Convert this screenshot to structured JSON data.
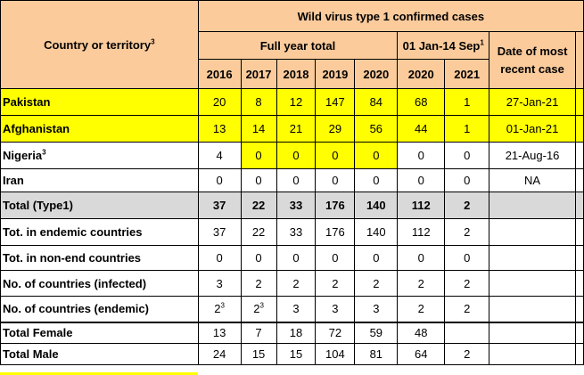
{
  "header": {
    "country_label": "Country or territory",
    "country_sup": "3",
    "wild_virus_title": "Wild virus type 1 confirmed cases",
    "full_year_label": "Full year total",
    "period_label": "01 Jan-14 Sep",
    "period_sup": "1",
    "date_recent_label": "Date of most recent case",
    "years": [
      "2016",
      "2017",
      "2018",
      "2019",
      "2020"
    ],
    "period_years": [
      "2020",
      "2021"
    ]
  },
  "rows": [
    {
      "label": "Pakistan",
      "sup": "",
      "values": [
        "20",
        "8",
        "12",
        "147",
        "84",
        "68",
        "1"
      ],
      "date": "27-Jan-21"
    },
    {
      "label": "Afghanistan",
      "sup": "",
      "values": [
        "13",
        "14",
        "21",
        "29",
        "56",
        "44",
        "1"
      ],
      "date": "01-Jan-21"
    },
    {
      "label": "Nigeria",
      "sup": "3",
      "values": [
        "4",
        "0",
        "0",
        "0",
        "0",
        "0",
        "0"
      ],
      "date": "21-Aug-16"
    },
    {
      "label": "Iran",
      "sup": "",
      "values": [
        "0",
        "0",
        "0",
        "0",
        "0",
        "0",
        "0"
      ],
      "date": "NA"
    },
    {
      "label": "Total (Type1)",
      "sup": "",
      "values": [
        "37",
        "22",
        "33",
        "176",
        "140",
        "112",
        "2"
      ],
      "date": ""
    },
    {
      "label": "Tot. in endemic countries",
      "sup": "",
      "values": [
        "37",
        "22",
        "33",
        "176",
        "140",
        "112",
        "2"
      ],
      "date": ""
    },
    {
      "label": "Tot. in non-end countries",
      "sup": "",
      "values": [
        "0",
        "0",
        "0",
        "0",
        "0",
        "0",
        "0"
      ],
      "date": ""
    },
    {
      "label": "No. of countries (infected)",
      "sup": "",
      "values": [
        "3",
        "2",
        "2",
        "2",
        "2",
        "2",
        "2"
      ],
      "date": ""
    },
    {
      "label": "No. of countries (endemic)",
      "sup": "",
      "values": [
        "2",
        "2",
        "3",
        "3",
        "3",
        "2",
        "2"
      ],
      "value_sups": [
        "3",
        "3",
        "",
        "",
        "",
        "",
        ""
      ],
      "date": ""
    },
    {
      "label": "Total Female",
      "sup": "",
      "values": [
        "13",
        "7",
        "18",
        "72",
        "59",
        "48",
        ""
      ],
      "date": ""
    },
    {
      "label": "Total Male",
      "sup": "",
      "values": [
        "24",
        "15",
        "15",
        "104",
        "81",
        "64",
        "2"
      ],
      "date": ""
    }
  ],
  "colors": {
    "header_bg": "#fbcb9c",
    "highlight_yellow": "#ffff00",
    "total_grey": "#d9d9d9"
  }
}
